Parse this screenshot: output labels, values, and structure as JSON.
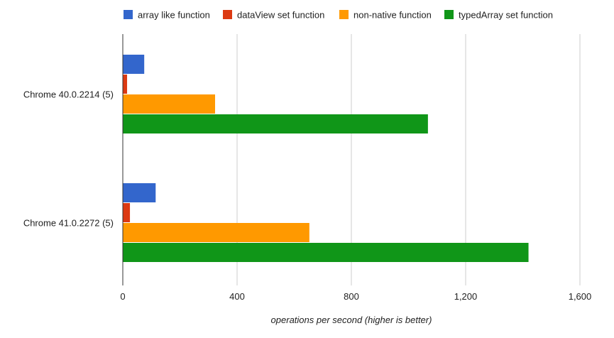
{
  "chart_data": {
    "type": "bar",
    "orientation": "horizontal",
    "categories": [
      "Chrome 40.0.2214 (5)",
      "Chrome 41.0.2272 (5)"
    ],
    "series": [
      {
        "name": "array like function",
        "color": "#3366cc",
        "values": [
          75,
          115
        ]
      },
      {
        "name": "dataView set function",
        "color": "#dc3912",
        "values": [
          15,
          25
        ]
      },
      {
        "name": "non-native function",
        "color": "#ff9900",
        "values": [
          323,
          653
        ]
      },
      {
        "name": "typedArray set function",
        "color": "#109618",
        "values": [
          1068,
          1420
        ]
      }
    ],
    "xlabel": "operations per second (higher is better)",
    "ylabel": "",
    "xlim": [
      0,
      1600
    ],
    "xticks": [
      0,
      400,
      800,
      1200,
      1600
    ],
    "xtick_labels": [
      "0",
      "400",
      "800",
      "1,200",
      "1,600"
    ],
    "grid": true,
    "legend": "top"
  }
}
